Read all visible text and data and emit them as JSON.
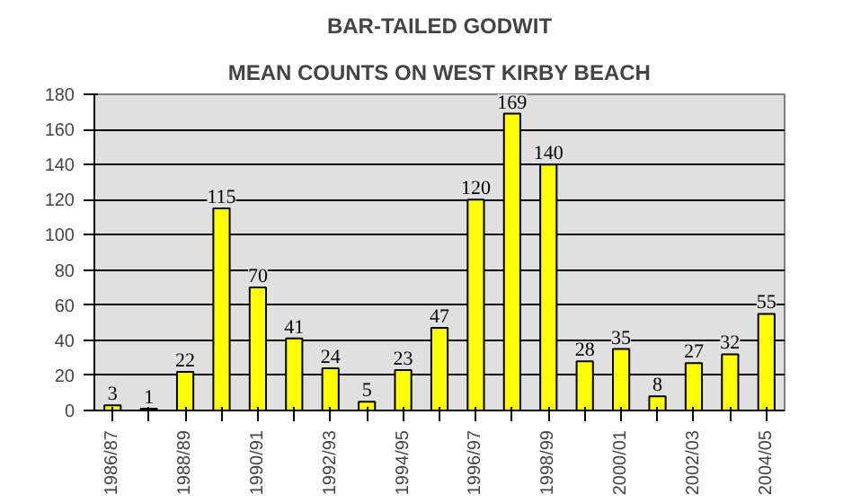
{
  "chart_data": {
    "type": "bar",
    "title": "BAR-TAILED GODWIT",
    "subtitle": "MEAN COUNTS ON WEST KIRBY BEACH",
    "categories": [
      "1986/87",
      null,
      "1988/89",
      null,
      "1990/91",
      null,
      "1992/93",
      null,
      "1994/95",
      null,
      "1996/97",
      null,
      "1998/99",
      null,
      "2000/01",
      null,
      "2002/03",
      null,
      "2004/05"
    ],
    "values": [
      3,
      1,
      22,
      115,
      70,
      41,
      24,
      5,
      23,
      47,
      120,
      169,
      140,
      28,
      35,
      8,
      27,
      32,
      55
    ],
    "color": "#ffff00",
    "ylim": [
      0,
      180
    ],
    "yticks": [
      0,
      20,
      40,
      60,
      80,
      100,
      120,
      140,
      160,
      180
    ],
    "grid": "y",
    "data_labels": true
  }
}
